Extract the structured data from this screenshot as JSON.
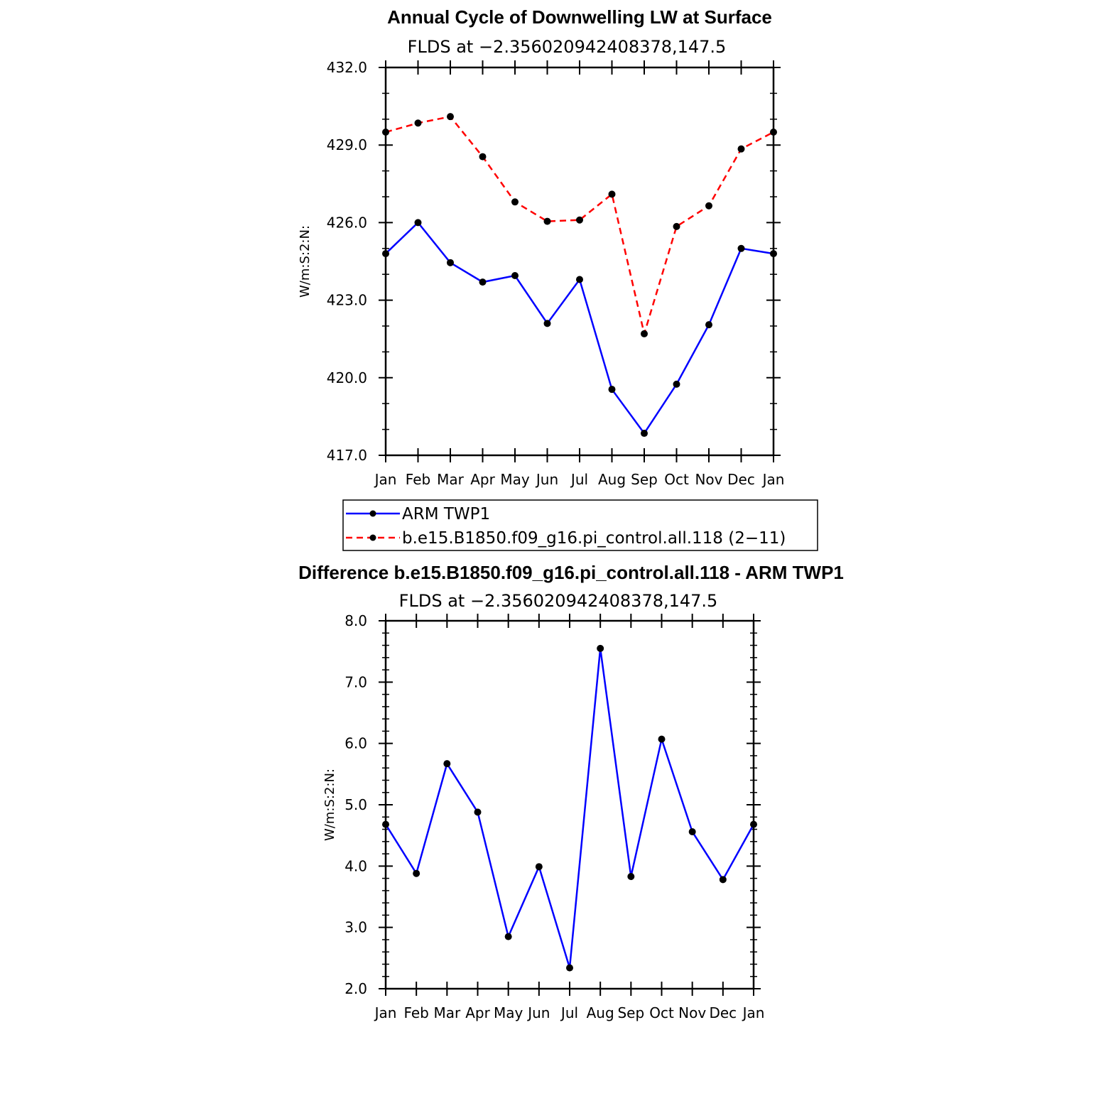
{
  "chart_data": [
    {
      "type": "line",
      "title": "Annual Cycle of Downwelling LW at Surface",
      "subtitle": "FLDS at −2.356020942408378,147.5",
      "ylabel": "W/m:S:2:N:",
      "xlabel": "",
      "categories": [
        "Jan",
        "Feb",
        "Mar",
        "Apr",
        "May",
        "Jun",
        "Jul",
        "Aug",
        "Sep",
        "Oct",
        "Nov",
        "Dec",
        "Jan"
      ],
      "ylim": [
        417.0,
        432.0
      ],
      "yticks": [
        "417.0",
        "420.0",
        "423.0",
        "426.0",
        "429.0",
        "432.0"
      ],
      "series": [
        {
          "name": "ARM TWP1",
          "color": "#0000ff",
          "dash": "solid",
          "values": [
            424.8,
            426.0,
            424.45,
            423.7,
            423.95,
            422.1,
            423.8,
            419.55,
            417.85,
            419.75,
            422.05,
            425.0,
            424.8
          ]
        },
        {
          "name": "b.e15.B1850.f09_g16.pi_control.all.118 (2−11)",
          "color": "#ff0000",
          "dash": "dashed",
          "values": [
            429.5,
            429.85,
            430.1,
            428.55,
            426.8,
            426.05,
            426.1,
            427.1,
            421.7,
            425.85,
            426.65,
            428.85,
            429.5
          ]
        }
      ],
      "legend": "below"
    },
    {
      "type": "line",
      "title": "Difference b.e15.B1850.f09_g16.pi_control.all.118 - ARM TWP1",
      "subtitle": "FLDS at −2.356020942408378,147.5",
      "ylabel": "W/m:S:2:N:",
      "xlabel": "",
      "categories": [
        "Jan",
        "Feb",
        "Mar",
        "Apr",
        "May",
        "Jun",
        "Jul",
        "Aug",
        "Sep",
        "Oct",
        "Nov",
        "Dec",
        "Jan"
      ],
      "ylim": [
        2.0,
        8.0
      ],
      "yticks": [
        "2.0",
        "3.0",
        "4.0",
        "5.0",
        "6.0",
        "7.0",
        "8.0"
      ],
      "series": [
        {
          "color": "#0000ff",
          "dash": "solid",
          "values": [
            4.68,
            3.88,
            5.67,
            4.88,
            2.85,
            3.99,
            2.34,
            7.55,
            3.83,
            6.07,
            4.56,
            3.78,
            4.68
          ]
        }
      ]
    }
  ]
}
